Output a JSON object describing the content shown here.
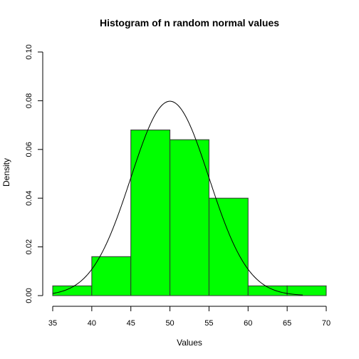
{
  "chart_data": {
    "type": "bar",
    "title": "Histogram of n random normal values",
    "xlabel": "Values",
    "ylabel": "Density",
    "xlim": [
      35,
      70
    ],
    "ylim": [
      0,
      0.1
    ],
    "x_ticks": [
      "35",
      "40",
      "45",
      "50",
      "55",
      "60",
      "65",
      "70"
    ],
    "y_ticks": [
      "0.00",
      "0.02",
      "0.04",
      "0.06",
      "0.08",
      "0.10"
    ],
    "bins": [
      {
        "start": 35,
        "end": 40,
        "density": 0.004
      },
      {
        "start": 40,
        "end": 45,
        "density": 0.016
      },
      {
        "start": 45,
        "end": 50,
        "density": 0.068
      },
      {
        "start": 50,
        "end": 55,
        "density": 0.064
      },
      {
        "start": 55,
        "end": 60,
        "density": 0.04
      },
      {
        "start": 60,
        "end": 65,
        "density": 0.004
      },
      {
        "start": 65,
        "end": 70,
        "density": 0.004
      }
    ],
    "curve": {
      "type": "normal-density",
      "mean": 50,
      "sd": 5,
      "from": 35,
      "to": 67
    },
    "colors": {
      "bar_fill": "#00ff00",
      "bar_stroke": "#333333",
      "curve": "#000000"
    },
    "grid": false,
    "legend": "none"
  }
}
